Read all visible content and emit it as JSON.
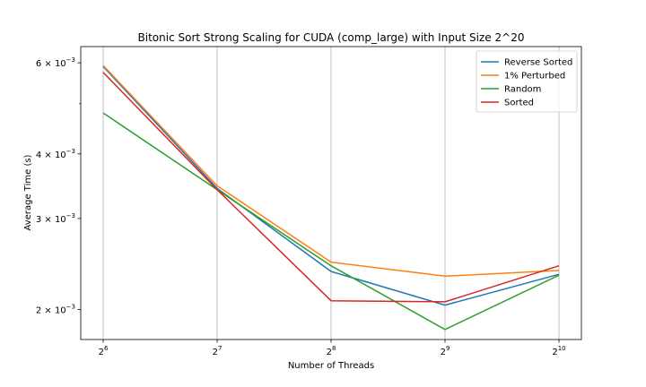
{
  "chart_data": {
    "type": "line",
    "title": "Bitonic Sort Strong Scaling for CUDA (comp_large) with Input Size 2^20",
    "xlabel": "Number of Threads",
    "ylabel": "Average Time (s)",
    "x_scale": "log2",
    "y_scale": "log",
    "grid": "x-major",
    "legend_position": "top-right",
    "x": [
      64,
      128,
      256,
      512,
      1024
    ],
    "x_tick_labels": [
      {
        "base": "2",
        "exp": "6"
      },
      {
        "base": "2",
        "exp": "7"
      },
      {
        "base": "2",
        "exp": "8"
      },
      {
        "base": "2",
        "exp": "9"
      },
      {
        "base": "2",
        "exp": "10"
      }
    ],
    "y_ticks": [
      {
        "value": 0.002,
        "mant": "2",
        "exp": "−3"
      },
      {
        "value": 0.003,
        "mant": "3",
        "exp": "−3"
      },
      {
        "value": 0.004,
        "mant": "4",
        "exp": "−3"
      },
      {
        "value": 0.006,
        "mant": "6",
        "exp": "−3"
      }
    ],
    "y_minor_ticks": [
      0.005
    ],
    "ylim": [
      0.00175,
      0.00645
    ],
    "series": [
      {
        "name": "Reverse Sorted",
        "color": "#1f77b4",
        "values": [
          0.0059,
          0.00343,
          0.00237,
          0.00204,
          0.00234
        ]
      },
      {
        "name": "1% Perturbed",
        "color": "#ff7f0e",
        "values": [
          0.00593,
          0.00347,
          0.00247,
          0.00232,
          0.00238
        ]
      },
      {
        "name": "Random",
        "color": "#2ca02c",
        "values": [
          0.0048,
          0.00341,
          0.00243,
          0.00183,
          0.00233
        ]
      },
      {
        "name": "Sorted",
        "color": "#d62728",
        "values": [
          0.00575,
          0.00341,
          0.00208,
          0.00207,
          0.00243
        ]
      }
    ]
  }
}
